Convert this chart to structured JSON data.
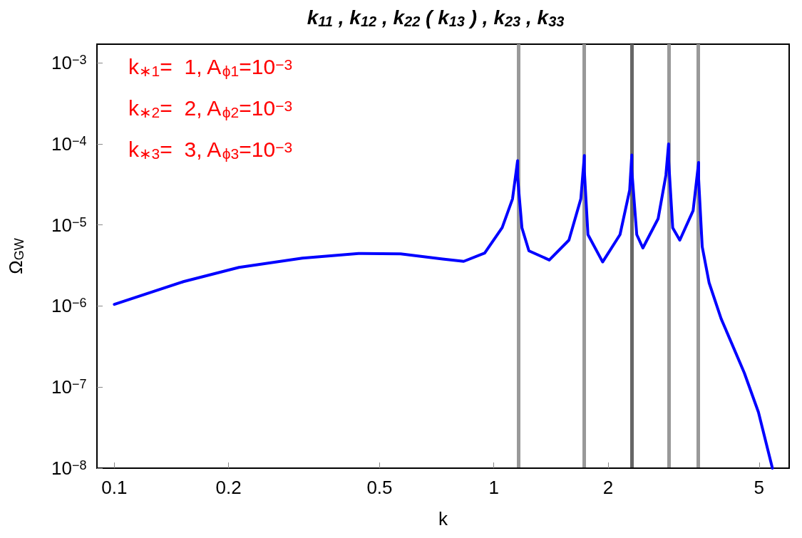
{
  "chart_data": {
    "type": "line",
    "title": "k$_{11}$ , k$_{12}$ , k$_{22}$ ( k$_{13}$ ) , k$_{23}$ , k$_{33}$",
    "xlabel": "k",
    "ylabel": "Ω$_{GW}$",
    "log": "xy",
    "grid": false,
    "legend": false,
    "marker": "none",
    "line_style": "solid",
    "xlim": [
      0.09,
      6
    ],
    "xticks": [
      0.1,
      0.2,
      0.5,
      1,
      2,
      5
    ],
    "ylim": [
      1e-08,
      0.0017
    ],
    "yticks": [
      {
        "value": 1e-08,
        "label": "10$^{−8}$"
      },
      {
        "value": 1e-07,
        "label": "10$^{−7}$"
      },
      {
        "value": 1e-06,
        "label": "10$^{−6}$"
      },
      {
        "value": 1e-05,
        "label": "10$^{−5}$"
      },
      {
        "value": 0.0001,
        "label": "10$^{−4}$"
      },
      {
        "value": 0.001,
        "label": "10$^{−3}$"
      }
    ],
    "annotations": [
      "k$_{∗1}$=  1, A$_{ϕ1}$=10$^{−3}$",
      "k$_{∗2}$=  2, A$_{ϕ2}$=10$^{−3}$",
      "k$_{∗3}$=  3, A$_{ϕ3}$=10$^{−3}$"
    ],
    "ref_lines": [
      {
        "axis": "x",
        "value": 1.155,
        "label": null,
        "color": "#999999"
      },
      {
        "axis": "x",
        "value": 1.732,
        "label": null,
        "color": "#999999"
      },
      {
        "axis": "x",
        "value": 2.309,
        "label": null,
        "color": "#666666"
      },
      {
        "axis": "x",
        "value": 2.887,
        "label": null,
        "color": "#999999"
      },
      {
        "axis": "x",
        "value": 3.464,
        "label": null,
        "color": "#999999"
      }
    ],
    "series": [
      {
        "color": "#0000ff",
        "x": [
          0.1,
          0.152,
          0.213,
          0.313,
          0.44,
          0.568,
          0.733,
          0.833,
          0.946,
          1.052,
          1.12,
          1.155,
          1.155,
          1.186,
          1.237,
          1.4,
          1.577,
          1.695,
          1.732,
          1.732,
          1.77,
          1.935,
          2.15,
          2.28,
          2.309,
          2.309,
          2.38,
          2.47,
          2.71,
          2.84,
          2.887,
          2.887,
          2.96,
          3.09,
          3.35,
          3.464,
          3.464,
          3.54,
          3.69,
          3.97,
          4.57,
          4.98,
          5.42
        ],
        "values": [
          1.05e-06,
          2e-06,
          3e-06,
          3.9e-06,
          4.45e-06,
          4.4e-06,
          3.8e-06,
          3.56e-06,
          4.5e-06,
          9.3e-06,
          2.1e-05,
          6.2e-05,
          3.9e-05,
          9.2e-06,
          4.8e-06,
          3.7e-06,
          6.5e-06,
          2.1e-05,
          7.2e-05,
          4.6e-05,
          7.6e-06,
          3.5e-06,
          7.6e-06,
          2.7e-05,
          7.3e-05,
          4.8e-05,
          7.6e-06,
          5.2e-06,
          1.2e-05,
          4.1e-05,
          0.0001,
          6.4e-05,
          9.2e-06,
          6.5e-06,
          1.5e-05,
          5.9e-05,
          3.7e-05,
          5.4e-06,
          1.95e-06,
          7e-07,
          1.5e-07,
          4.9e-08,
          1e-08
        ]
      }
    ]
  }
}
